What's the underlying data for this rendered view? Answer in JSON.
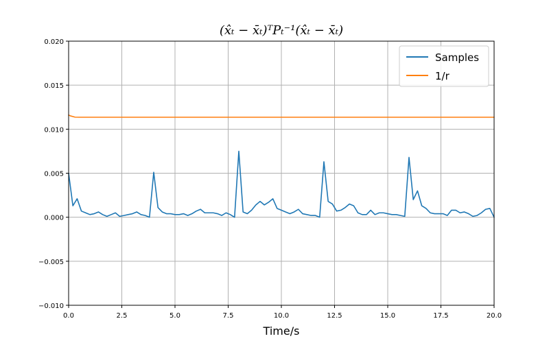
{
  "chart_data": {
    "type": "line",
    "title": "(x̂ₜ − x̄ₜ)ᵀPₜ⁻¹(x̂ₜ − x̄ₜ)",
    "xlabel": "Time/s",
    "ylabel": "",
    "xlim": [
      0.0,
      20.0
    ],
    "ylim": [
      -0.01,
      0.02
    ],
    "xticks": [
      "0.0",
      "2.5",
      "5.0",
      "7.5",
      "10.0",
      "12.5",
      "15.0",
      "17.5",
      "20.0"
    ],
    "yticks": [
      "−0.010",
      "−0.005",
      "0.000",
      "0.005",
      "0.010",
      "0.015",
      "0.020"
    ],
    "grid": true,
    "legend_position": "top-right",
    "series": [
      {
        "name": "Samples",
        "color": "#1f77b4",
        "x": [
          0.0,
          0.2,
          0.4,
          0.6,
          0.8,
          1.0,
          1.2,
          1.4,
          1.6,
          1.8,
          2.0,
          2.2,
          2.4,
          2.6,
          2.8,
          3.0,
          3.2,
          3.4,
          3.6,
          3.8,
          4.0,
          4.2,
          4.4,
          4.6,
          4.8,
          5.0,
          5.2,
          5.4,
          5.6,
          5.8,
          6.0,
          6.2,
          6.4,
          6.6,
          6.8,
          7.0,
          7.2,
          7.4,
          7.6,
          7.8,
          8.0,
          8.2,
          8.4,
          8.6,
          8.8,
          9.0,
          9.2,
          9.4,
          9.6,
          9.8,
          10.0,
          10.2,
          10.4,
          10.6,
          10.8,
          11.0,
          11.2,
          11.4,
          11.6,
          11.8,
          12.0,
          12.2,
          12.4,
          12.6,
          12.8,
          13.0,
          13.2,
          13.4,
          13.6,
          13.8,
          14.0,
          14.2,
          14.4,
          14.6,
          14.8,
          15.0,
          15.2,
          15.4,
          15.6,
          15.8,
          16.0,
          16.2,
          16.4,
          16.6,
          16.8,
          17.0,
          17.2,
          17.4,
          17.6,
          17.8,
          18.0,
          18.2,
          18.4,
          18.6,
          18.8,
          19.0,
          19.2,
          19.4,
          19.6,
          19.8,
          20.0
        ],
        "values": [
          0.005,
          0.0013,
          0.0021,
          0.0007,
          0.0005,
          0.0003,
          0.0004,
          0.0006,
          0.0003,
          0.0001,
          0.0003,
          0.0005,
          0.0001,
          0.0002,
          0.0003,
          0.0004,
          0.0006,
          0.0003,
          0.0002,
          0.0,
          0.0051,
          0.0011,
          0.0006,
          0.0004,
          0.0004,
          0.0003,
          0.0003,
          0.0004,
          0.0002,
          0.0004,
          0.0007,
          0.0009,
          0.0005,
          0.0005,
          0.0005,
          0.0004,
          0.0002,
          0.0005,
          0.0003,
          0.0,
          0.0075,
          0.0006,
          0.0004,
          0.0008,
          0.0014,
          0.0018,
          0.0014,
          0.0017,
          0.0021,
          0.001,
          0.0008,
          0.0006,
          0.0004,
          0.0006,
          0.0009,
          0.0004,
          0.0003,
          0.0002,
          0.0002,
          0.0,
          0.0063,
          0.0018,
          0.0015,
          0.0007,
          0.0008,
          0.0011,
          0.0015,
          0.0013,
          0.0005,
          0.0003,
          0.0003,
          0.0008,
          0.0003,
          0.0005,
          0.0005,
          0.0004,
          0.0003,
          0.0003,
          0.0002,
          0.0001,
          0.0068,
          0.002,
          0.003,
          0.0013,
          0.001,
          0.0005,
          0.0004,
          0.0004,
          0.0004,
          0.0002,
          0.0008,
          0.0008,
          0.0005,
          0.0006,
          0.0004,
          0.0001,
          0.0002,
          0.0005,
          0.0009,
          0.001,
          0.0
        ]
      },
      {
        "name": "1/r",
        "color": "#ff7f0e",
        "x": [
          0.0,
          0.1,
          0.3,
          0.5,
          20.0
        ],
        "values": [
          0.0116,
          0.0115,
          0.01137,
          0.01136,
          0.01136
        ]
      }
    ]
  }
}
